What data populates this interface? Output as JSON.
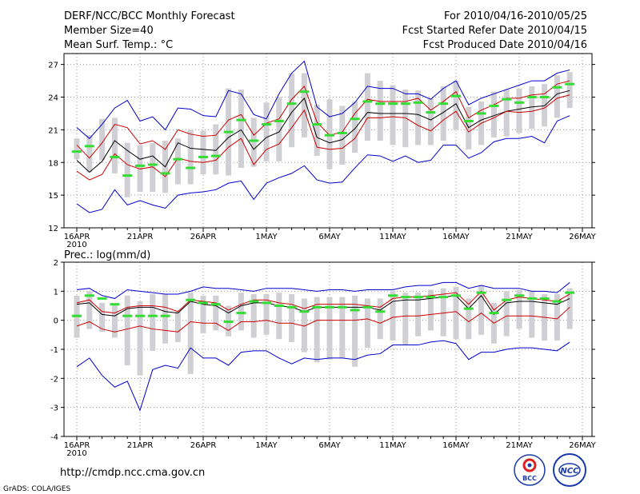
{
  "header": {
    "left": [
      "DERF/NCC/BCC Monthly Forecast",
      "Member Size=40",
      "Mean Surf. Temp.: °C"
    ],
    "right": [
      "For 2010/04/16-2010/05/25",
      "Fcst Started Refer Date 2010/04/15",
      "Fcst Produced Date 2010/04/16"
    ]
  },
  "footer": {
    "url": "http://cmdp.ncc.cma.gov.cn",
    "credit": "GrADS: COLA/IGES",
    "logo_left": "BCC",
    "logo_right": "NCC"
  },
  "colors": {
    "minmax": "#0000cc",
    "spread": "#cc0000",
    "mean": "#000000",
    "observed": "#33dd33",
    "bar": "#d0d0d4"
  },
  "chart_data": [
    {
      "type": "line",
      "title": "Mean Surf. Temp.: °C",
      "x_tick_labels": [
        "16APR",
        "21APR",
        "26APR",
        "1MAY",
        "6MAY",
        "11MAY",
        "16MAY",
        "21MAY",
        "26MAY"
      ],
      "x_tick_sublabel": "2010",
      "ylim": [
        12,
        28
      ],
      "yticks": [
        12,
        15,
        18,
        21,
        24,
        27
      ],
      "days": 40,
      "series": [
        {
          "name": "max",
          "values": [
            21.2,
            20.2,
            21.5,
            23.0,
            23.7,
            21.8,
            22.2,
            21.0,
            23.0,
            22.9,
            22.3,
            22.2,
            24.6,
            24.3,
            22.4,
            22.0,
            24.3,
            26.2,
            27.3,
            23.1,
            22.2,
            22.5,
            23.5,
            25.0,
            24.8,
            24.8,
            24.3,
            24.3,
            23.8,
            24.8,
            25.5,
            23.3,
            23.9,
            24.3,
            24.7,
            25.1,
            25.5,
            25.5,
            26.2,
            26.5
          ]
        },
        {
          "name": "upper",
          "values": [
            19.6,
            18.4,
            19.8,
            21.5,
            21.2,
            19.7,
            20.0,
            19.2,
            21.0,
            20.6,
            20.4,
            20.5,
            21.9,
            22.4,
            20.5,
            21.6,
            22.0,
            23.8,
            25.0,
            21.7,
            20.5,
            20.8,
            22.5,
            23.8,
            23.6,
            23.6,
            23.6,
            23.9,
            22.8,
            23.6,
            24.5,
            22.1,
            22.8,
            23.3,
            23.9,
            23.9,
            24.2,
            24.3,
            25.2,
            25.5
          ]
        },
        {
          "name": "mean",
          "values": [
            18.2,
            17.1,
            18.1,
            20.0,
            19.1,
            18.3,
            18.6,
            17.6,
            19.8,
            19.3,
            19.2,
            19.1,
            20.3,
            21.0,
            19.2,
            20.3,
            20.8,
            22.6,
            23.9,
            20.3,
            19.8,
            20.1,
            21.1,
            22.6,
            22.5,
            22.5,
            22.5,
            22.4,
            21.9,
            22.6,
            23.4,
            21.2,
            21.9,
            22.3,
            22.7,
            22.9,
            23.1,
            23.2,
            24.3,
            24.6
          ]
        },
        {
          "name": "lower",
          "values": [
            17.2,
            16.4,
            16.9,
            18.8,
            17.8,
            17.4,
            17.6,
            16.7,
            18.4,
            18.1,
            18.0,
            18.2,
            19.4,
            20.2,
            17.8,
            19.2,
            19.7,
            21.2,
            22.8,
            19.4,
            19.2,
            19.3,
            20.2,
            22.1,
            22.1,
            22.2,
            22.1,
            21.4,
            20.9,
            21.9,
            22.7,
            20.8,
            21.6,
            22.1,
            22.7,
            22.6,
            22.7,
            23.0,
            23.9,
            24.2
          ]
        },
        {
          "name": "min",
          "values": [
            14.2,
            13.4,
            13.7,
            15.5,
            14.1,
            14.5,
            14.1,
            13.8,
            15.0,
            15.2,
            15.3,
            15.5,
            16.1,
            16.3,
            14.6,
            16.1,
            16.6,
            17.0,
            17.7,
            16.4,
            16.1,
            16.2,
            17.5,
            18.7,
            18.6,
            18.1,
            18.6,
            18.0,
            18.2,
            19.6,
            19.6,
            18.4,
            18.9,
            19.9,
            20.2,
            20.2,
            20.4,
            19.8,
            21.8,
            22.3
          ]
        },
        {
          "name": "observed",
          "values": [
            19.0,
            19.5,
            null,
            18.5,
            16.8,
            17.7,
            17.8,
            17.0,
            18.3,
            17.5,
            18.5,
            18.6,
            20.8,
            21.9,
            20.0,
            21.5,
            21.8,
            23.4,
            24.5,
            21.5,
            20.5,
            20.7,
            22.0,
            23.6,
            23.4,
            23.4,
            23.4,
            23.5,
            22.6,
            23.4,
            24.1,
            21.8,
            22.5,
            23.2,
            23.8,
            23.5,
            24.0,
            24.0,
            24.9,
            25.2
          ]
        }
      ],
      "bars": [
        [
          18.3,
          20.2
        ],
        [
          17.1,
          20.5
        ],
        [
          18.2,
          22.0
        ],
        [
          17.0,
          22.1
        ],
        [
          14.8,
          19.8
        ],
        [
          15.3,
          19.6
        ],
        [
          15.3,
          19.8
        ],
        [
          15.2,
          20.0
        ],
        [
          16.0,
          20.2
        ],
        [
          16.0,
          21.0
        ],
        [
          16.9,
          20.9
        ],
        [
          16.9,
          21.5
        ],
        [
          16.8,
          24.8
        ],
        [
          17.5,
          24.7
        ],
        [
          17.6,
          22.1
        ],
        [
          18.1,
          23.5
        ],
        [
          18.1,
          24.0
        ],
        [
          19.4,
          26.2
        ],
        [
          20.3,
          26.2
        ],
        [
          18.6,
          23.3
        ],
        [
          17.4,
          23.8
        ],
        [
          17.8,
          23.2
        ],
        [
          18.9,
          23.6
        ],
        [
          20.0,
          26.2
        ],
        [
          20.0,
          25.5
        ],
        [
          19.6,
          25.1
        ],
        [
          19.4,
          24.7
        ],
        [
          19.6,
          24.6
        ],
        [
          19.6,
          23.9
        ],
        [
          20.0,
          25.0
        ],
        [
          21.0,
          25.5
        ],
        [
          19.2,
          23.1
        ],
        [
          19.6,
          23.6
        ],
        [
          20.3,
          24.5
        ],
        [
          20.4,
          24.7
        ],
        [
          20.7,
          24.8
        ],
        [
          21.1,
          25.0
        ],
        [
          21.3,
          25.2
        ],
        [
          22.1,
          26.0
        ],
        [
          23.0,
          26.3
        ]
      ]
    },
    {
      "type": "line",
      "title": "Prec.: log(mm/d)",
      "x_tick_labels": [
        "16APR",
        "21APR",
        "26APR",
        "1MAY",
        "6MAY",
        "11MAY",
        "16MAY",
        "21MAY",
        "26MAY"
      ],
      "x_tick_sublabel": "2010",
      "ylim": [
        -4,
        2
      ],
      "yticks": [
        -4,
        -3,
        -2,
        -1,
        0,
        1,
        2
      ],
      "days": 40,
      "series": [
        {
          "name": "max",
          "values": [
            1.05,
            1.1,
            0.85,
            0.75,
            1.05,
            1.0,
            0.95,
            0.9,
            0.9,
            1.0,
            1.15,
            1.1,
            1.1,
            1.05,
            1.0,
            1.1,
            1.1,
            1.1,
            1.05,
            1.0,
            1.05,
            1.05,
            1.0,
            1.05,
            1.05,
            1.05,
            1.15,
            1.2,
            1.2,
            1.3,
            1.3,
            1.1,
            1.2,
            1.1,
            1.1,
            1.1,
            1.0,
            1.0,
            0.95,
            1.3
          ]
        },
        {
          "name": "upper",
          "values": [
            0.6,
            0.7,
            0.3,
            0.25,
            0.45,
            0.5,
            0.5,
            0.45,
            0.3,
            0.7,
            0.65,
            0.6,
            0.35,
            0.55,
            0.7,
            0.7,
            0.6,
            0.55,
            0.4,
            0.55,
            0.55,
            0.55,
            0.55,
            0.5,
            0.45,
            0.75,
            0.8,
            0.8,
            0.85,
            0.9,
            0.95,
            0.55,
            1.0,
            0.35,
            0.7,
            0.8,
            0.75,
            0.7,
            0.65,
            0.9
          ]
        },
        {
          "name": "mean",
          "values": [
            0.55,
            0.6,
            0.2,
            0.15,
            0.4,
            0.45,
            0.45,
            0.3,
            0.25,
            0.65,
            0.55,
            0.5,
            0.25,
            0.5,
            0.6,
            0.6,
            0.5,
            0.45,
            0.3,
            0.45,
            0.45,
            0.45,
            0.45,
            0.45,
            0.35,
            0.65,
            0.7,
            0.7,
            0.75,
            0.8,
            0.85,
            0.4,
            0.85,
            0.2,
            0.6,
            0.65,
            0.65,
            0.6,
            0.55,
            0.75
          ]
        },
        {
          "name": "lower",
          "values": [
            -0.2,
            -0.05,
            -0.3,
            -0.4,
            -0.3,
            -0.2,
            -0.3,
            -0.35,
            -0.4,
            -0.05,
            -0.1,
            -0.1,
            -0.35,
            -0.05,
            -0.05,
            0.0,
            -0.1,
            -0.1,
            -0.2,
            0.0,
            0.0,
            0.0,
            0.0,
            0.05,
            -0.1,
            0.1,
            0.15,
            0.15,
            0.2,
            0.25,
            0.3,
            -0.05,
            0.25,
            -0.1,
            0.15,
            0.15,
            0.15,
            0.1,
            0.05,
            0.45
          ]
        },
        {
          "name": "min",
          "values": [
            -1.6,
            -1.3,
            -1.9,
            -2.3,
            -2.1,
            -3.1,
            -1.7,
            -1.55,
            -1.65,
            -0.95,
            -1.3,
            -1.3,
            -1.55,
            -1.1,
            -1.05,
            -1.05,
            -1.3,
            -1.5,
            -1.3,
            -1.35,
            -1.3,
            -1.3,
            -1.35,
            -1.2,
            -1.15,
            -0.85,
            -0.85,
            -0.85,
            -0.75,
            -0.7,
            -0.8,
            -1.35,
            -1.1,
            -1.1,
            -1.0,
            -0.95,
            -0.95,
            -1.0,
            -1.05,
            -0.75
          ]
        },
        {
          "name": "observed",
          "values": [
            0.15,
            0.85,
            0.75,
            0.55,
            0.15,
            0.15,
            0.15,
            0.15,
            null,
            0.7,
            0.6,
            0.55,
            -0.05,
            0.25,
            0.65,
            0.6,
            0.5,
            0.45,
            0.3,
            0.45,
            0.45,
            0.45,
            0.35,
            0.45,
            0.3,
            0.85,
            0.8,
            0.8,
            0.8,
            0.8,
            0.85,
            0.4,
            0.95,
            0.25,
            0.7,
            0.85,
            0.75,
            0.75,
            0.65,
            0.95
          ]
        }
      ],
      "bars": [
        [
          -0.6,
          0.85
        ],
        [
          -0.3,
          1.0
        ],
        [
          -0.4,
          0.6
        ],
        [
          -0.6,
          0.55
        ],
        [
          -1.55,
          0.85
        ],
        [
          -1.9,
          0.65
        ],
        [
          -1.05,
          0.9
        ],
        [
          -0.8,
          0.9
        ],
        [
          -0.75,
          0.3
        ],
        [
          -1.85,
          0.95
        ],
        [
          -0.45,
          0.85
        ],
        [
          -0.35,
          0.85
        ],
        [
          -0.55,
          0.5
        ],
        [
          -0.35,
          0.95
        ],
        [
          -0.6,
          0.9
        ],
        [
          -0.5,
          0.9
        ],
        [
          -0.65,
          0.95
        ],
        [
          -0.75,
          0.9
        ],
        [
          -1.1,
          0.75
        ],
        [
          -1.45,
          0.8
        ],
        [
          -1.35,
          0.8
        ],
        [
          -1.3,
          0.8
        ],
        [
          -1.6,
          0.85
        ],
        [
          -0.95,
          0.75
        ],
        [
          -0.65,
          0.75
        ],
        [
          -0.7,
          1.0
        ],
        [
          -0.85,
          0.95
        ],
        [
          -0.55,
          0.95
        ],
        [
          -0.35,
          1.05
        ],
        [
          -0.55,
          1.1
        ],
        [
          -0.65,
          1.15
        ],
        [
          -0.65,
          0.75
        ],
        [
          -0.5,
          1.2
        ],
        [
          -0.8,
          0.6
        ],
        [
          -0.55,
          1.0
        ],
        [
          -0.3,
          1.05
        ],
        [
          -0.6,
          1.0
        ],
        [
          -0.7,
          0.9
        ],
        [
          -0.7,
          0.9
        ],
        [
          -0.3,
          1.1
        ]
      ]
    }
  ]
}
